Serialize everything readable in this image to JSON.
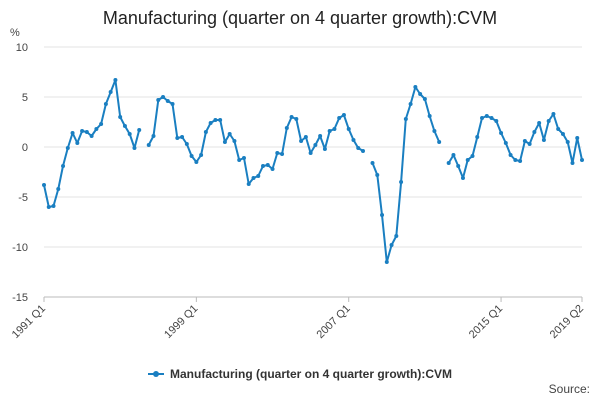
{
  "chart_data": {
    "type": "line",
    "title": "Manufacturing (quarter on 4 quarter growth):CVM",
    "ylabel": "%",
    "xlabel": "",
    "ylim": [
      -15,
      10
    ],
    "yticks": [
      -15,
      -10,
      -5,
      0,
      5,
      10
    ],
    "xtick_labels": [
      "1991 Q1",
      "1999 Q1",
      "2007 Q1",
      "2015 Q1",
      "2019 Q2"
    ],
    "legend_position": "bottom",
    "color": "#1a7fc1",
    "series": [
      {
        "name": "Manufacturing (quarter on 4 quarter growth):CVM",
        "x_start": "1991 Q1",
        "values": [
          -3.8,
          -6.0,
          -5.9,
          -4.2,
          -1.9,
          -0.1,
          1.4,
          0.4,
          1.6,
          1.5,
          1.1,
          1.8,
          2.3,
          4.3,
          5.5,
          6.7,
          3.0,
          2.1,
          1.3,
          -0.1,
          1.7,
          null,
          0.2,
          1.1,
          4.7,
          5.0,
          4.6,
          4.3,
          0.9,
          1.0,
          0.3,
          -0.9,
          -1.5,
          -0.8,
          1.5,
          2.4,
          2.7,
          2.7,
          0.5,
          1.3,
          0.6,
          -1.3,
          -1.1,
          -3.7,
          -3.1,
          -2.9,
          -1.9,
          -1.8,
          -2.2,
          -0.6,
          -0.7,
          1.9,
          3.0,
          2.8,
          0.6,
          1.0,
          -0.6,
          0.2,
          1.1,
          -0.2,
          1.6,
          1.8,
          2.9,
          3.2,
          1.8,
          0.7,
          -0.1,
          -0.4,
          null,
          -1.6,
          -2.8,
          -6.8,
          -11.5,
          -9.8,
          -8.9,
          -3.5,
          2.8,
          4.3,
          6.0,
          5.3,
          4.8,
          3.1,
          1.6,
          0.5,
          null,
          -1.6,
          -0.8,
          -1.9,
          -3.1,
          -1.3,
          -0.9,
          1.0,
          2.9,
          3.1,
          2.9,
          2.6,
          1.4,
          0.4,
          -0.8,
          -1.3,
          -1.4,
          0.6,
          0.3,
          1.5,
          2.4,
          0.7,
          2.6,
          3.3,
          1.8,
          1.3,
          0.5,
          -1.6,
          0.9,
          -1.3
        ]
      }
    ]
  },
  "source_label": "Source:"
}
